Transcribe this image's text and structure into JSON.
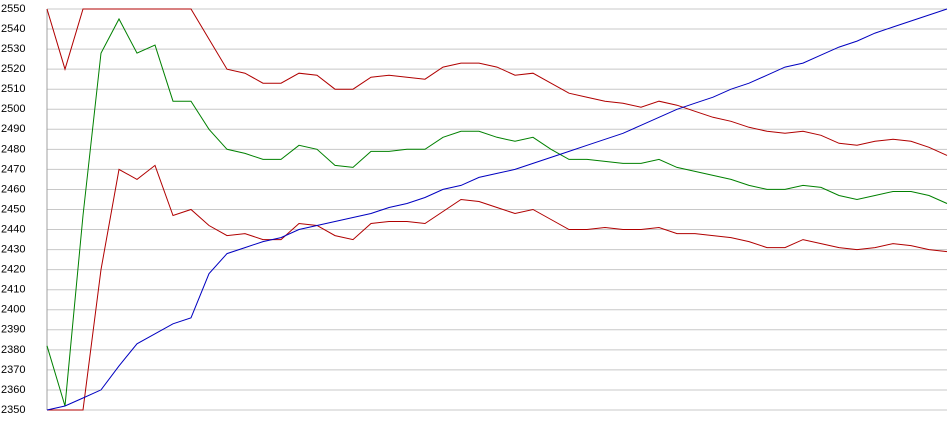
{
  "chart_data": {
    "type": "line",
    "ylim": [
      2350,
      2550
    ],
    "yticks": [
      2350,
      2360,
      2370,
      2380,
      2390,
      2400,
      2410,
      2420,
      2430,
      2440,
      2450,
      2460,
      2470,
      2480,
      2490,
      2500,
      2510,
      2520,
      2530,
      2540,
      2550
    ],
    "grid": true,
    "series": [
      {
        "color": "#b00000",
        "values": [
          2550,
          2520,
          2550,
          2550,
          2550,
          2550,
          2550,
          2550,
          2550,
          2535,
          2520,
          2518,
          2513,
          2513,
          2518,
          2517,
          2510,
          2510,
          2516,
          2517,
          2516,
          2515,
          2521,
          2523,
          2523,
          2521,
          2517,
          2518,
          2513,
          2508,
          2506,
          2504,
          2503,
          2501,
          2504,
          2502,
          2499,
          2496,
          2494,
          2491,
          2489,
          2488,
          2489,
          2487,
          2483,
          2482,
          2484,
          2485,
          2484,
          2481,
          2477
        ]
      },
      {
        "color": "#008000",
        "values": [
          2382,
          2352,
          2447,
          2528,
          2545,
          2528,
          2532,
          2504,
          2504,
          2490,
          2480,
          2478,
          2475,
          2475,
          2482,
          2480,
          2472,
          2471,
          2479,
          2479,
          2480,
          2480,
          2486,
          2489,
          2489,
          2486,
          2484,
          2486,
          2480,
          2475,
          2475,
          2474,
          2473,
          2473,
          2475,
          2471,
          2469,
          2467,
          2465,
          2462,
          2460,
          2460,
          2462,
          2461,
          2457,
          2455,
          2457,
          2459,
          2459,
          2457,
          2453
        ]
      },
      {
        "color": "#b00000",
        "values": [
          2350,
          2350,
          2350,
          2420,
          2470,
          2465,
          2472,
          2447,
          2450,
          2442,
          2437,
          2438,
          2435,
          2435,
          2443,
          2442,
          2437,
          2435,
          2443,
          2444,
          2444,
          2443,
          2449,
          2455,
          2454,
          2451,
          2448,
          2450,
          2445,
          2440,
          2440,
          2441,
          2440,
          2440,
          2441,
          2438,
          2438,
          2437,
          2436,
          2434,
          2431,
          2431,
          2435,
          2433,
          2431,
          2430,
          2431,
          2433,
          2432,
          2430,
          2429
        ]
      },
      {
        "color": "#0000c0",
        "values": [
          2350,
          2352,
          2356,
          2360,
          2372,
          2383,
          2388,
          2393,
          2396,
          2418,
          2428,
          2431,
          2434,
          2436,
          2440,
          2442,
          2444,
          2446,
          2448,
          2451,
          2453,
          2456,
          2460,
          2462,
          2466,
          2468,
          2470,
          2473,
          2476,
          2479,
          2482,
          2485,
          2488,
          2492,
          2496,
          2500,
          2503,
          2506,
          2510,
          2513,
          2517,
          2521,
          2523,
          2527,
          2531,
          2534,
          2538,
          2541,
          2544,
          2547,
          2550
        ]
      }
    ]
  }
}
